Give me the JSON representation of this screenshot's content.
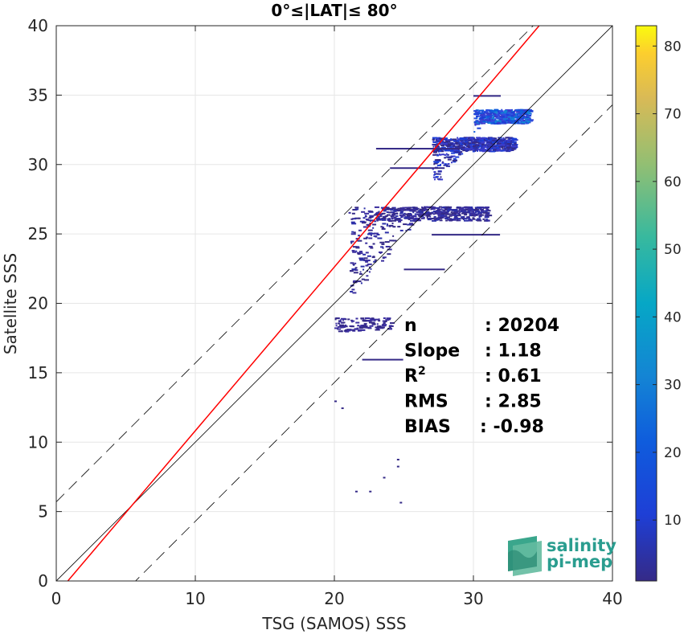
{
  "chart_data": {
    "type": "heatmap",
    "title": "0°≤|LAT|≤ 80°",
    "xlabel": "TSG (SAMOS) SSS",
    "ylabel": "Satellite SSS",
    "xlim": [
      0,
      40
    ],
    "ylim": [
      0,
      40
    ],
    "xticks": [
      "0",
      "10",
      "20",
      "30",
      "40"
    ],
    "yticks": [
      "0",
      "5",
      "10",
      "15",
      "20",
      "25",
      "30",
      "35",
      "40"
    ],
    "grid": true,
    "colorbar": {
      "range": [
        1,
        83
      ],
      "ticks": [
        "10",
        "20",
        "30",
        "40",
        "50",
        "60",
        "70",
        "80"
      ],
      "colormap": "parula"
    },
    "reference_lines": [
      {
        "name": "1:1",
        "color": "#000000",
        "style": "solid",
        "slope": 1,
        "intercept": 0
      },
      {
        "name": "+offset",
        "color": "#000000",
        "style": "dashed",
        "slope": 1,
        "intercept": 5.7
      },
      {
        "name": "-offset",
        "color": "#000000",
        "style": "dashed",
        "slope": 1,
        "intercept": -5.7
      },
      {
        "name": "regression",
        "color": "#ff0000",
        "style": "solid",
        "slope": 1.18,
        "intercept": -0.98
      }
    ],
    "stats": [
      {
        "label": "n",
        "value": ": 20204"
      },
      {
        "label": "Slope",
        "value": ": 1.18"
      },
      {
        "label": "R",
        "sup": "2",
        "value": ": 0.61"
      },
      {
        "label": "RMS",
        "value": ": 2.85"
      },
      {
        "label": "BIAS",
        "value": ": -0.98"
      }
    ],
    "density_regions": [
      {
        "x": [
          30,
          34
        ],
        "y": [
          28,
          34
        ],
        "density": "high"
      },
      {
        "x": [
          27,
          33
        ],
        "y": [
          25,
          32
        ],
        "density": "medium"
      },
      {
        "x": [
          21,
          31
        ],
        "y": [
          17,
          27
        ],
        "density": "low"
      },
      {
        "x": [
          20,
          24
        ],
        "y": [
          12,
          19
        ],
        "density": "sparse"
      }
    ]
  },
  "logo": {
    "line1": "salinity",
    "line2": "pi-mep"
  }
}
